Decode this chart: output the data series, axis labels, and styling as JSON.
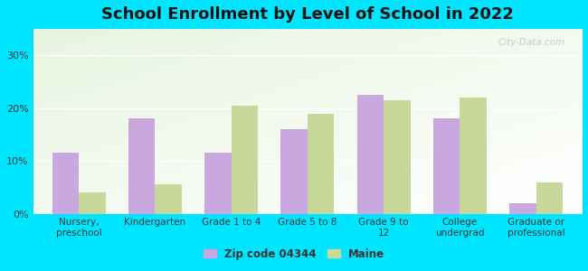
{
  "title": "School Enrollment by Level of School in 2022",
  "categories": [
    "Nursery,\npreschool",
    "Kindergarten",
    "Grade 1 to 4",
    "Grade 5 to 8",
    "Grade 9 to\n12",
    "College\nundergrad",
    "Graduate or\nprofessional"
  ],
  "zip_values": [
    11.5,
    18.0,
    11.5,
    16.0,
    22.5,
    18.0,
    2.0
  ],
  "maine_values": [
    4.0,
    5.5,
    20.5,
    19.0,
    21.5,
    22.0,
    6.0
  ],
  "zip_color": "#c9a8e0",
  "maine_color": "#c8d89a",
  "background_outer": "#00e5ff",
  "ylim": [
    0,
    35
  ],
  "yticks": [
    0,
    10,
    20,
    30
  ],
  "ytick_labels": [
    "0%",
    "10%",
    "20%",
    "30%"
  ],
  "legend_zip_label": "Zip code 04344",
  "legend_maine_label": "Maine",
  "title_fontsize": 13,
  "watermark": "City-Data.com"
}
